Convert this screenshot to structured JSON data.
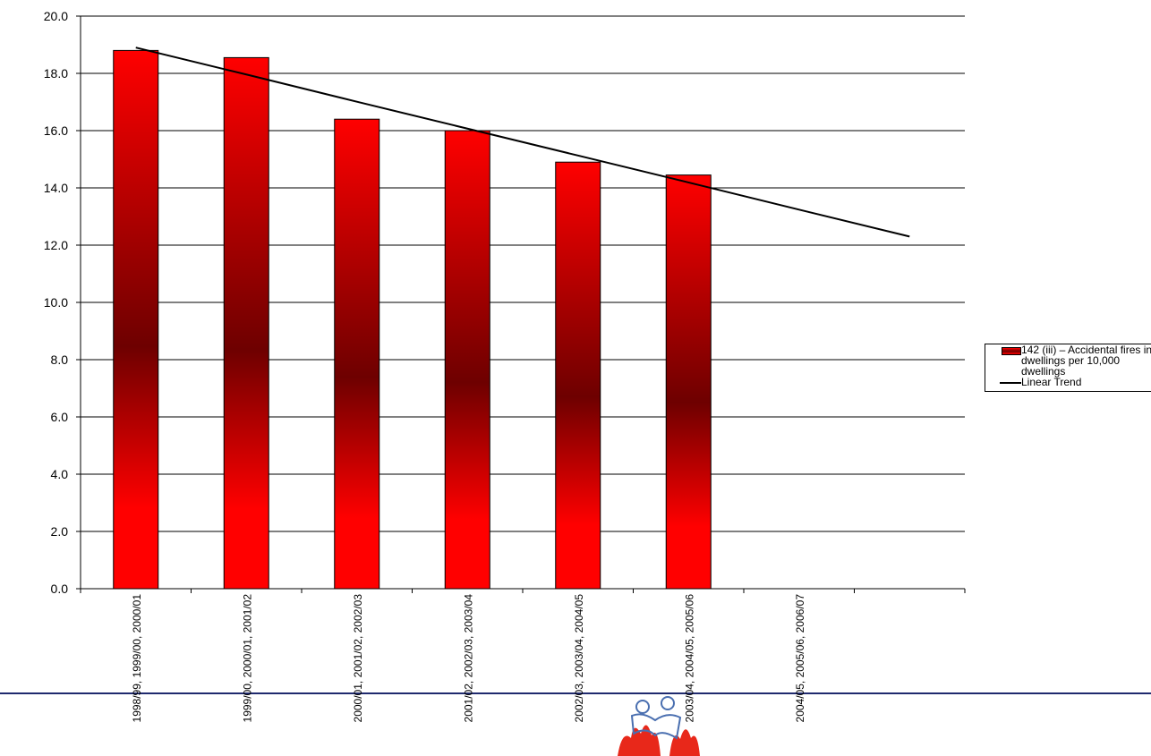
{
  "chart_data": {
    "type": "bar",
    "categories": [
      "1998/99, 1999/00, 2000/01",
      "1999/00, 2000/01, 2001/02",
      "2000/01, 2001/02, 2002/03",
      "2001/02, 2002/03, 2003/04",
      "2002/03, 2003/04, 2004/05",
      "2003/04, 2004/05, 2005/06",
      "2004/05, 2005/06, 2006/07",
      null
    ],
    "series": [
      {
        "name": "142 (iii) – Accidental fires in dwellings per 10,000 dwellings",
        "color": "#ff0000",
        "values": [
          18.8,
          18.55,
          16.4,
          16.0,
          14.9,
          14.45,
          null,
          null
        ]
      },
      {
        "name": "Linear Trend",
        "type": "line",
        "color": "#000000",
        "values": [
          18.9,
          17.96,
          17.01,
          16.07,
          15.13,
          14.19,
          13.24,
          12.3
        ]
      }
    ],
    "ylim": [
      0,
      20
    ],
    "yticks": [
      {
        "value": 0,
        "label": "0.0"
      },
      {
        "value": 2,
        "label": "2.0"
      },
      {
        "value": 4,
        "label": "4.0"
      },
      {
        "value": 6,
        "label": "6.0"
      },
      {
        "value": 8,
        "label": "8.0"
      },
      {
        "value": 10,
        "label": "10.0"
      },
      {
        "value": 12,
        "label": "12.0"
      },
      {
        "value": 14,
        "label": "14.0"
      },
      {
        "value": 16,
        "label": "16.0"
      },
      {
        "value": 18,
        "label": "18.0"
      },
      {
        "value": 20,
        "label": "20.0"
      }
    ],
    "grid": true,
    "legend": "right"
  }
}
